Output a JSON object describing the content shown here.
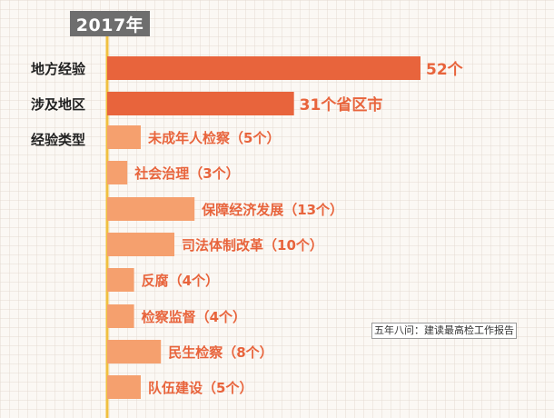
{
  "badge": {
    "year": "2017年"
  },
  "source": "五年八问：建读最高检工作报告",
  "colors": {
    "primary": "#e8643c",
    "secondary": "#f5a06e",
    "axis": "#f0c040",
    "labels": "#222222"
  },
  "chart_data": {
    "type": "bar",
    "orientation": "horizontal",
    "title": "2017年",
    "primary_bars": [
      {
        "category": "地方经验",
        "value": 52,
        "value_label": "52个"
      },
      {
        "category": "涉及地区",
        "value": 31,
        "value_label": "31个省区市"
      }
    ],
    "group_label": "经验类型",
    "series": [
      {
        "category": "未成年人检察",
        "value": 5,
        "value_label": "未成年人检察（5个）"
      },
      {
        "category": "社会治理",
        "value": 3,
        "value_label": "社会治理（3个）"
      },
      {
        "category": "保障经济发展",
        "value": 13,
        "value_label": "保障经济发展（13个）"
      },
      {
        "category": "司法体制改革",
        "value": 10,
        "value_label": "司法体制改革（10个）"
      },
      {
        "category": "反腐",
        "value": 4,
        "value_label": "反腐（4个）"
      },
      {
        "category": "检察监督",
        "value": 4,
        "value_label": "检察监督（4个）"
      },
      {
        "category": "民生检察",
        "value": 8,
        "value_label": "民生检察（8个）"
      },
      {
        "category": "队伍建设",
        "value": 5,
        "value_label": "队伍建设（5个）"
      }
    ],
    "grid": true
  }
}
